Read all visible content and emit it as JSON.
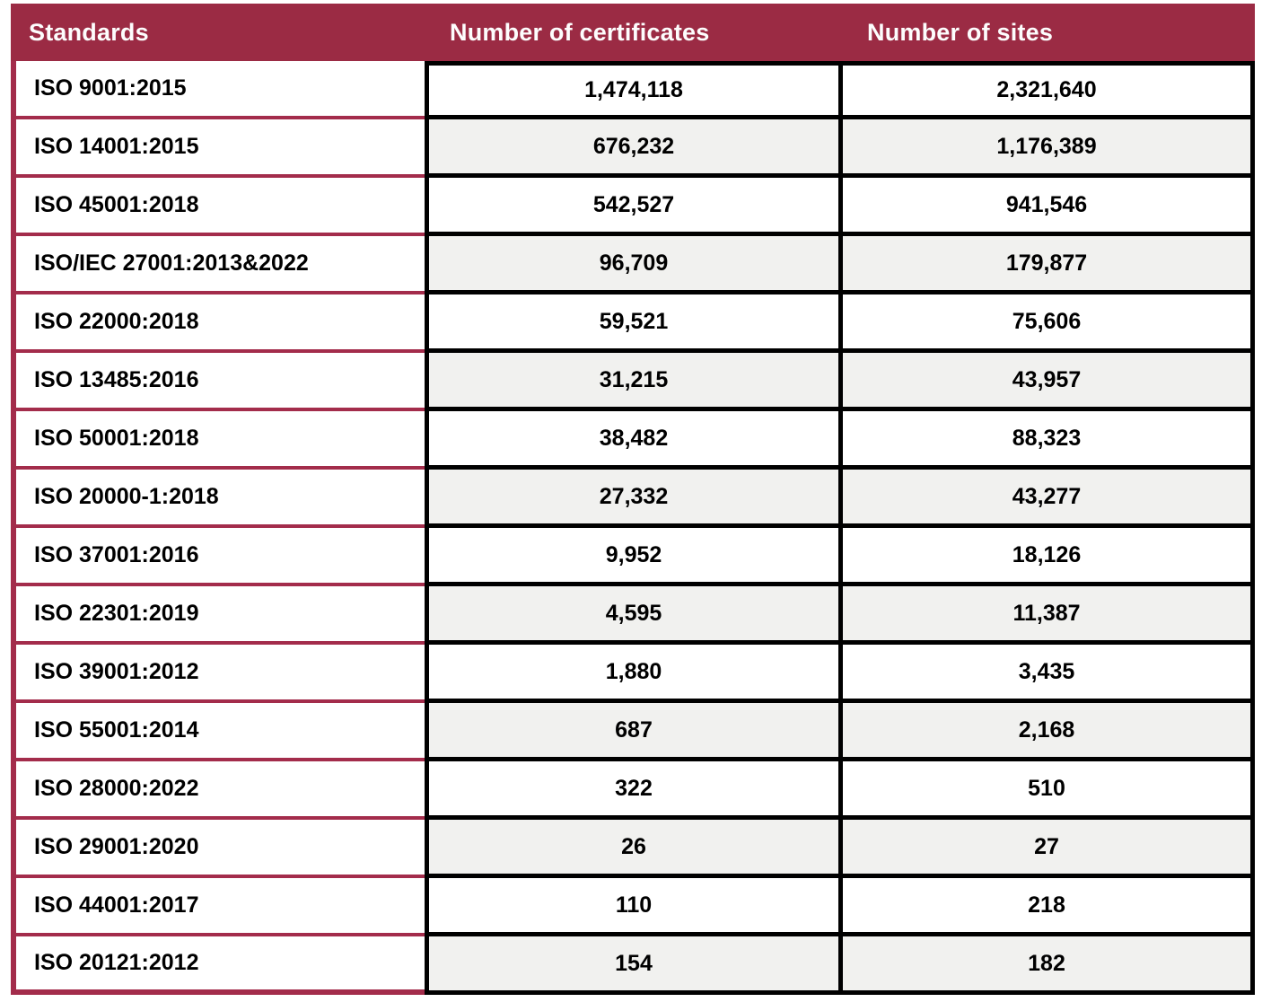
{
  "table": {
    "headers": [
      "Standards",
      "Number of certificates",
      "Number of sites"
    ],
    "rows": [
      {
        "standard": "ISO 9001:2015",
        "certificates": "1,474,118",
        "sites": "2,321,640"
      },
      {
        "standard": "ISO 14001:2015",
        "certificates": "676,232",
        "sites": "1,176,389"
      },
      {
        "standard": "ISO 45001:2018",
        "certificates": "542,527",
        "sites": "941,546"
      },
      {
        "standard": "ISO/IEC 27001:2013&2022",
        "certificates": "96,709",
        "sites": "179,877"
      },
      {
        "standard": "ISO 22000:2018",
        "certificates": "59,521",
        "sites": "75,606"
      },
      {
        "standard": "ISO 13485:2016",
        "certificates": "31,215",
        "sites": "43,957"
      },
      {
        "standard": "ISO 50001:2018",
        "certificates": "38,482",
        "sites": "88,323"
      },
      {
        "standard": "ISO 20000-1:2018",
        "certificates": "27,332",
        "sites": "43,277"
      },
      {
        "standard": "ISO 37001:2016",
        "certificates": "9,952",
        "sites": "18,126"
      },
      {
        "standard": "ISO 22301:2019",
        "certificates": "4,595",
        "sites": "11,387"
      },
      {
        "standard": "ISO 39001:2012",
        "certificates": "1,880",
        "sites": "3,435"
      },
      {
        "standard": "ISO 55001:2014",
        "certificates": "687",
        "sites": "2,168"
      },
      {
        "standard": "ISO 28000:2022",
        "certificates": "322",
        "sites": "510"
      },
      {
        "standard": "ISO 29001:2020",
        "certificates": "26",
        "sites": "27"
      },
      {
        "standard": "ISO 44001:2017",
        "certificates": "110",
        "sites": "218"
      },
      {
        "standard": "ISO 20121:2012",
        "certificates": "154",
        "sites": "182"
      }
    ]
  },
  "colors": {
    "header_bg": "#9B2B44",
    "header_text": "#FDFDFD",
    "standards_border": "#A32C4B",
    "data_border": "#000000",
    "alt_row_bg": "#F1F1EF",
    "body_text": "#000000"
  }
}
